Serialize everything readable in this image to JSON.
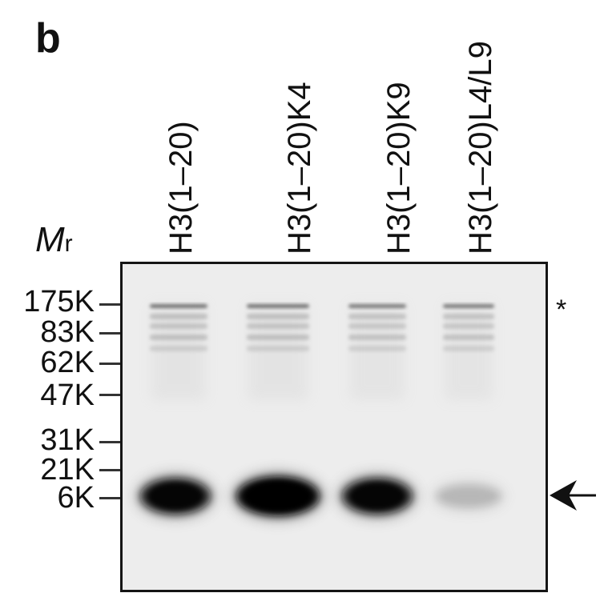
{
  "panel_label": "b",
  "mr_label": {
    "main": "M",
    "sub": "r"
  },
  "lanes": [
    {
      "label": "H3(1–20)",
      "high_mw_smear": 0.75,
      "product_band_intensity": 0.85
    },
    {
      "label": "H3(1–20)K4",
      "high_mw_smear": 0.75,
      "product_band_intensity": 1.0
    },
    {
      "label": "H3(1–20)K9",
      "high_mw_smear": 0.7,
      "product_band_intensity": 0.85
    },
    {
      "label": "H3(1–20)L4/L9",
      "high_mw_smear": 0.7,
      "product_band_intensity": 0.15
    }
  ],
  "markers": [
    "175K",
    "83K",
    "62K",
    "47K",
    "31K",
    "21K",
    "6K"
  ],
  "annotations": {
    "asterisk": "*",
    "arrow": "product-band-arrow"
  },
  "colors": {
    "band": "#0a0a0a",
    "gel_background": "#ededed",
    "frame": "#151515"
  }
}
